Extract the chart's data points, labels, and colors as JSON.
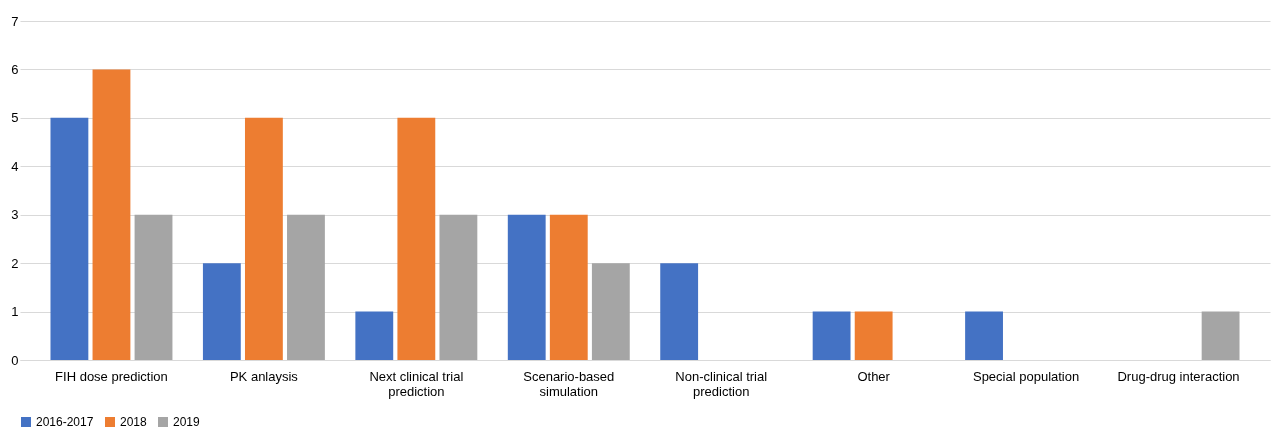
{
  "chart_data": {
    "type": "bar",
    "categories": [
      "FIH dose prediction",
      "PK anlaysis",
      "Next clinical trial prediction",
      "Scenario-based simulation",
      "Non-clinical trial prediction",
      "Other",
      "Special population",
      "Drug-drug interaction"
    ],
    "series": [
      {
        "name": "2016-2017",
        "color": "#4472c4",
        "values": [
          5,
          2,
          1,
          3,
          2,
          1,
          1,
          0
        ]
      },
      {
        "name": "2018",
        "color": "#ed7d31",
        "values": [
          6,
          5,
          5,
          3,
          0,
          1,
          0,
          0
        ]
      },
      {
        "name": "2019",
        "color": "#a5a5a5",
        "values": [
          3,
          3,
          3,
          2,
          0,
          0,
          0,
          1
        ]
      }
    ],
    "ylim": [
      0,
      7
    ],
    "yticks": [
      0,
      1,
      2,
      3,
      4,
      5,
      6,
      7
    ],
    "grid": "y",
    "legend": "bottom"
  }
}
